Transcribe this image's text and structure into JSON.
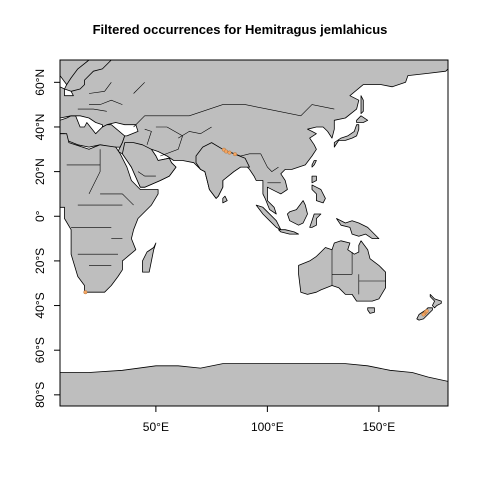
{
  "title": "Filtered occurrences for Hemitragus jemlahicus",
  "axes": {
    "x_ticks": [
      {
        "value": 50,
        "label": "50°E"
      },
      {
        "value": 100,
        "label": "100°E"
      },
      {
        "value": 150,
        "label": "150°E"
      }
    ],
    "y_ticks": [
      {
        "value": 60,
        "label": "60°N"
      },
      {
        "value": 40,
        "label": "40°N"
      },
      {
        "value": 20,
        "label": "20°N"
      },
      {
        "value": 0,
        "label": "0°"
      },
      {
        "value": -20,
        "label": "20°S"
      },
      {
        "value": -40,
        "label": "40°S"
      },
      {
        "value": -60,
        "label": "60°S"
      },
      {
        "value": -80,
        "label": "80°S"
      }
    ],
    "lon_range": [
      7,
      181
    ],
    "lat_range": [
      -85,
      70
    ]
  },
  "colors": {
    "land": "#bebebe",
    "border": "#000000",
    "occurrence": "#f4a460"
  },
  "occurrences": [
    {
      "lon": 80.5,
      "lat": 29.8
    },
    {
      "lon": 81.5,
      "lat": 29.0
    },
    {
      "lon": 83.0,
      "lat": 28.5
    },
    {
      "lon": 85.5,
      "lat": 27.8
    },
    {
      "lon": 18.4,
      "lat": -34.0
    },
    {
      "lon": 170.5,
      "lat": -43.5
    },
    {
      "lon": 171.0,
      "lat": -43.0
    },
    {
      "lon": 170.0,
      "lat": -44.0
    },
    {
      "lon": 171.5,
      "lat": -42.5
    }
  ]
}
